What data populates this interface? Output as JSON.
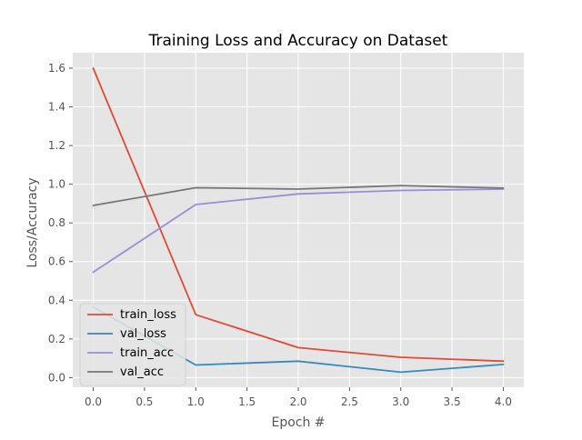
{
  "chart_data": {
    "type": "line",
    "title": "Training Loss and Accuracy on Dataset",
    "xlabel": "Epoch #",
    "ylabel": "Loss/Accuracy",
    "xlim": [
      -0.2,
      4.2
    ],
    "ylim": [
      -0.05,
      1.68
    ],
    "x_ticks": [
      "0.0",
      "0.5",
      "1.0",
      "1.5",
      "2.0",
      "2.5",
      "3.0",
      "3.5",
      "4.0"
    ],
    "y_ticks": [
      "0.0",
      "0.2",
      "0.4",
      "0.6",
      "0.8",
      "1.0",
      "1.2",
      "1.4",
      "1.6"
    ],
    "grid": true,
    "legend_position": "lower-left",
    "x": [
      0,
      1,
      2,
      3,
      4
    ],
    "series": [
      {
        "name": "train_loss",
        "color": "#E24A33",
        "values": [
          1.6,
          0.325,
          0.155,
          0.105,
          0.085
        ]
      },
      {
        "name": "val_loss",
        "color": "#348ABD",
        "values": [
          0.365,
          0.065,
          0.085,
          0.028,
          0.068
        ]
      },
      {
        "name": "train_acc",
        "color": "#988ED5",
        "values": [
          0.545,
          0.895,
          0.95,
          0.968,
          0.975
        ]
      },
      {
        "name": "val_acc",
        "color": "#777777",
        "values": [
          0.89,
          0.982,
          0.975,
          0.993,
          0.98
        ]
      }
    ]
  }
}
